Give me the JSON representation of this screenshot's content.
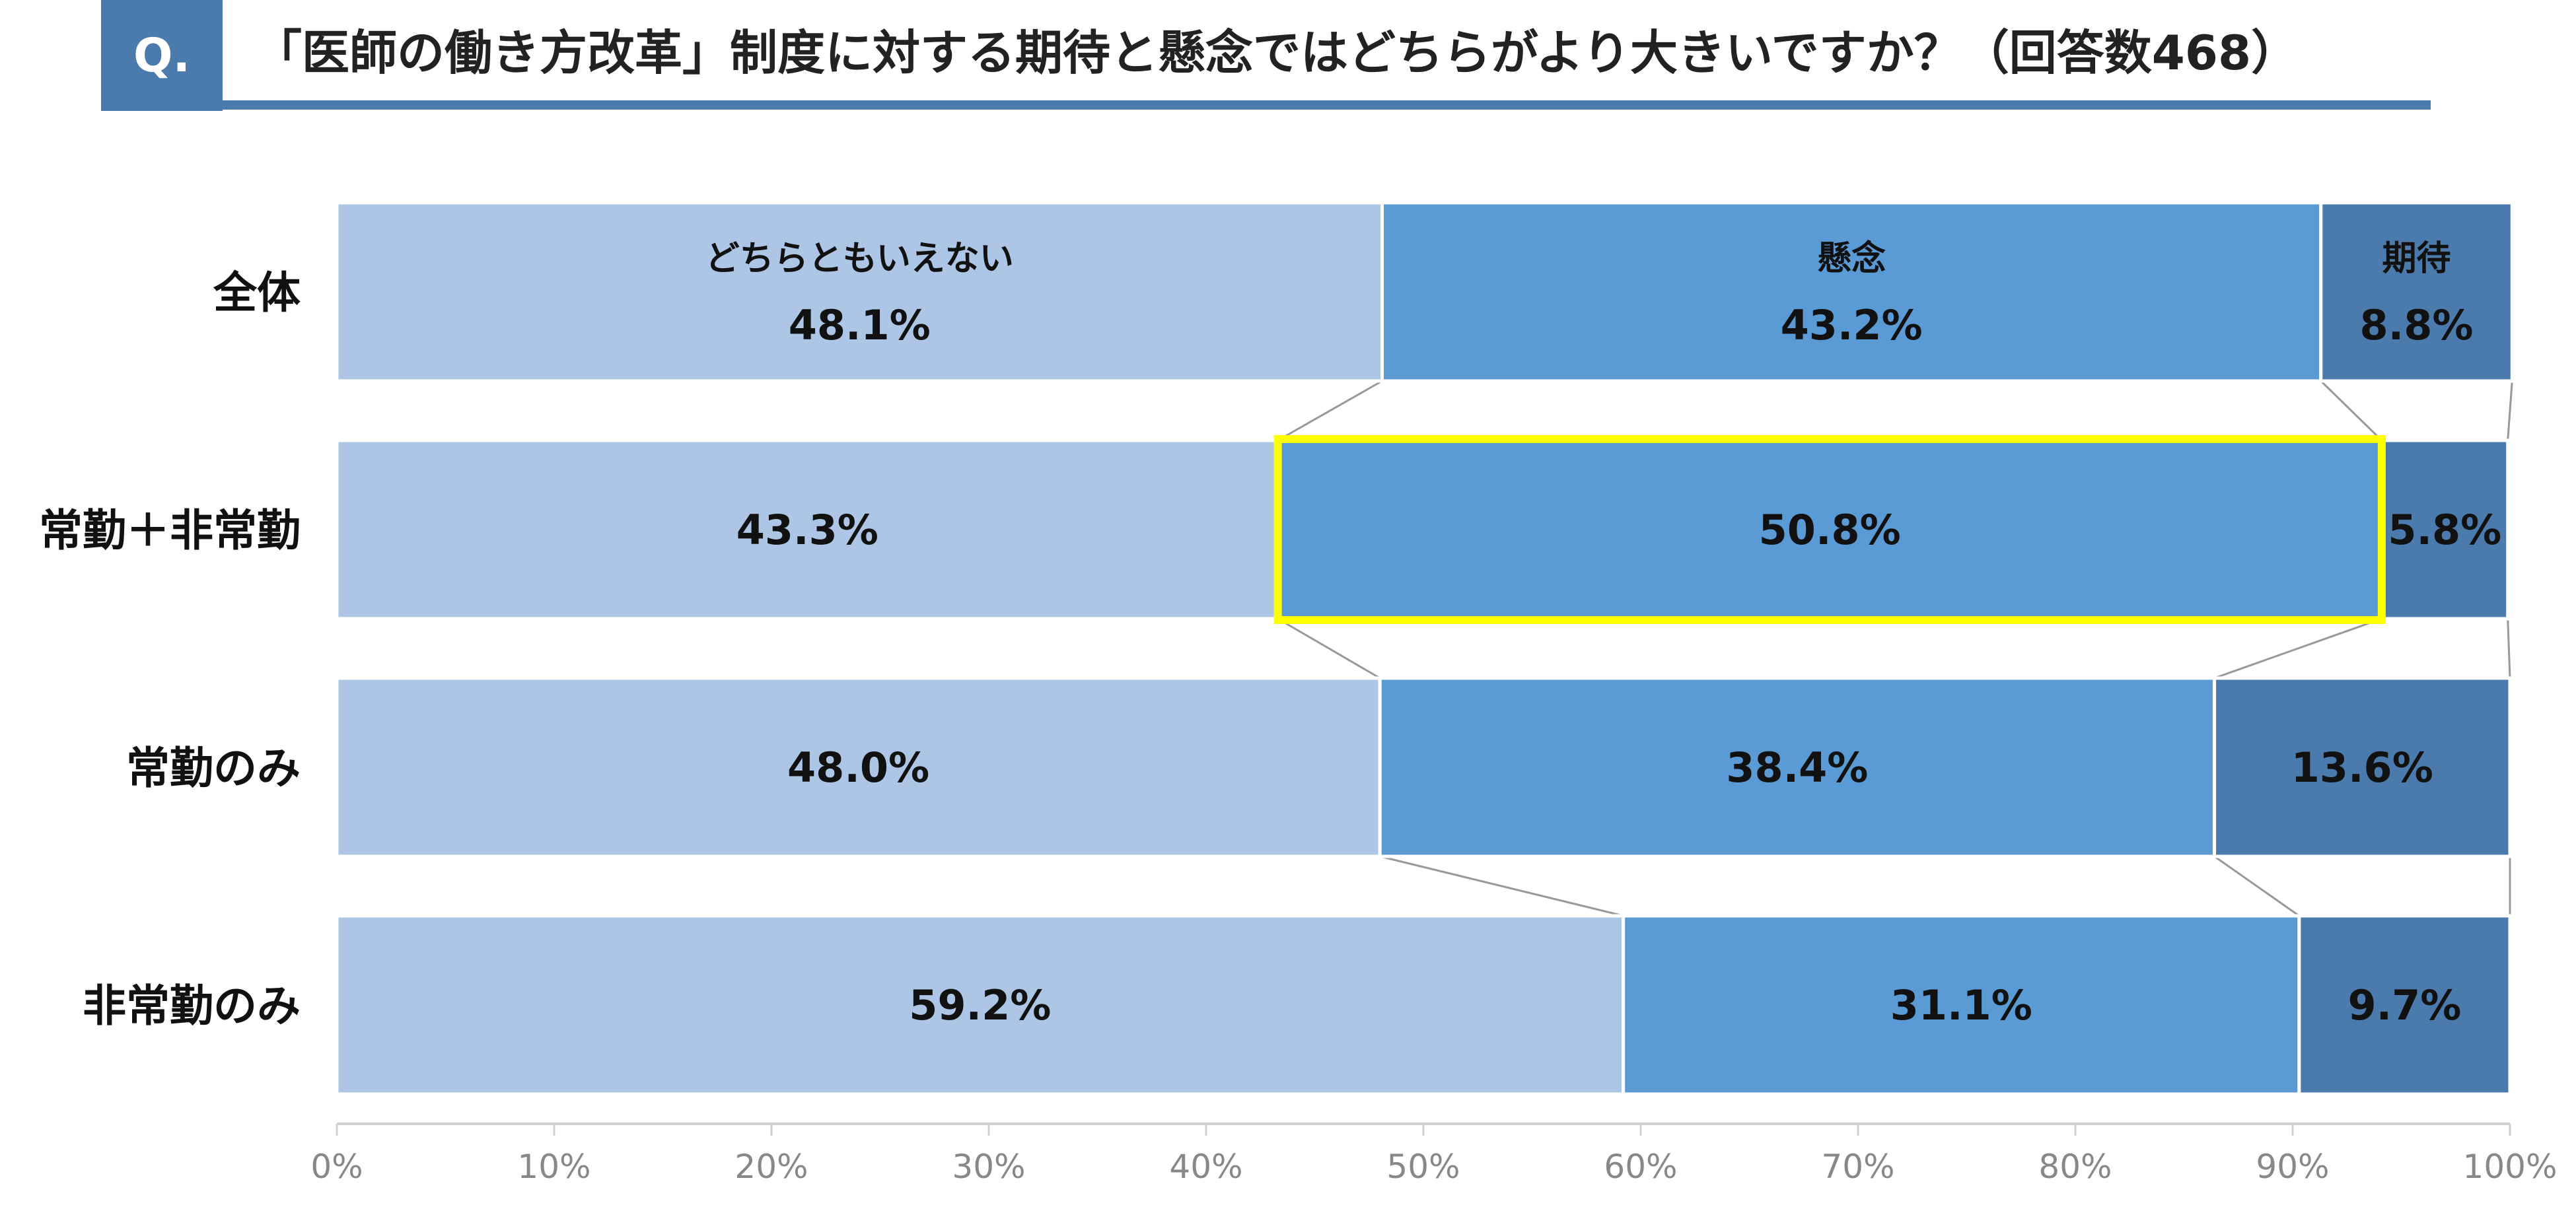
{
  "header": {
    "badge": "Q.",
    "title": "「医師の働き方改革」制度に対する期待と懸念ではどちらがより大きいですか？（回答数468）"
  },
  "colors": {
    "neutral": "#adc6e6",
    "concern": "#5b9bd5",
    "expect": "#4a7bac",
    "highlight": "#ffff00",
    "axis": "#d0d0d0",
    "connector": "#999999"
  },
  "chart_data": {
    "type": "bar",
    "orientation": "horizontal",
    "stacked": "percent",
    "categories": [
      "全体",
      "常勤＋非常勤",
      "常勤のみ",
      "非常勤のみ"
    ],
    "series": [
      {
        "name": "どちらともいえない",
        "values": [
          48.1,
          43.3,
          48.0,
          59.2
        ],
        "labels": [
          "48.1%",
          "43.3%",
          "48.0%",
          "59.2%"
        ]
      },
      {
        "name": "懸念",
        "values": [
          43.2,
          50.8,
          38.4,
          31.1
        ],
        "labels": [
          "43.2%",
          "50.8%",
          "38.4%",
          "31.1%"
        ]
      },
      {
        "name": "期待",
        "values": [
          8.8,
          5.8,
          13.6,
          9.7
        ],
        "labels": [
          "8.8%",
          "5.8%",
          "13.6%",
          "9.7%"
        ]
      }
    ],
    "xlim": [
      0,
      100
    ],
    "x_ticks": [
      "0%",
      "10%",
      "20%",
      "30%",
      "40%",
      "50%",
      "60%",
      "70%",
      "80%",
      "90%",
      "100%"
    ],
    "series_names_shown_on_row": 0,
    "highlight": {
      "category": "常勤＋非常勤",
      "series": "懸念"
    },
    "connector_lines": true,
    "grid": false,
    "legend": "none"
  }
}
